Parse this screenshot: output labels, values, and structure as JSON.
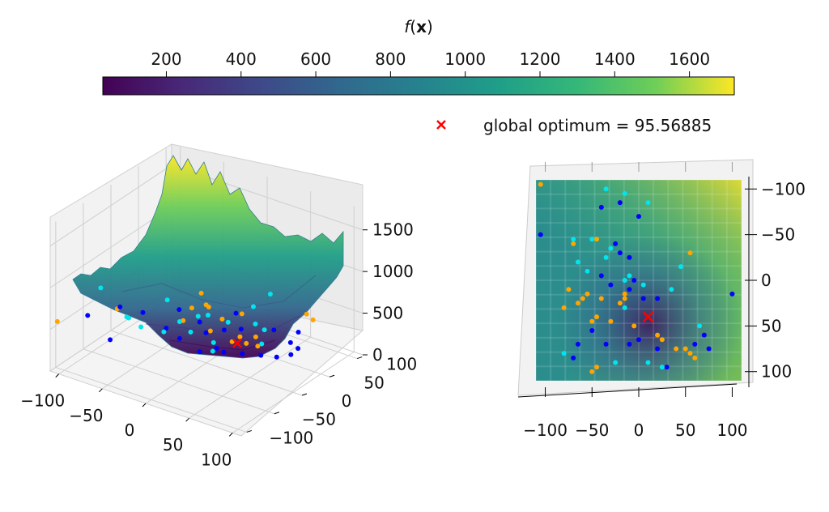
{
  "colorbar": {
    "title_prefix": "f(",
    "title_var": "x",
    "title_suffix": ")",
    "ticks": [
      200,
      400,
      600,
      800,
      1000,
      1200,
      1400,
      1600
    ],
    "range": [
      30,
      1720
    ],
    "colormap": "viridis"
  },
  "legend": {
    "label": "global optimum = 95.56885",
    "marker_color": "#ff0000",
    "marker": "x"
  },
  "chart_data": [
    {
      "type": "surface3d",
      "title": "",
      "x_ticks": [
        -100,
        -50,
        0,
        50,
        100
      ],
      "y_ticks": [
        -100,
        -50,
        0,
        50,
        100
      ],
      "z_ticks": [
        0,
        500,
        1000,
        1500
      ],
      "xlim": [
        -110,
        110
      ],
      "ylim": [
        -110,
        110
      ],
      "zlim": [
        0,
        1750
      ],
      "grid": true,
      "optimum": {
        "x": 10,
        "y": 40,
        "z": 95.56885,
        "color": "#ff0000"
      },
      "series": [
        {
          "color": "#ffa500",
          "points": [
            [
              -105,
              -105,
              590
            ],
            [
              60,
              -95,
              1330
            ],
            [
              -90,
              -20,
              420
            ],
            [
              -30,
              5,
              380
            ],
            [
              -5,
              15,
              300
            ],
            [
              20,
              15,
              260
            ],
            [
              30,
              25,
              230
            ],
            [
              40,
              30,
              210
            ],
            [
              25,
              50,
              180
            ],
            [
              10,
              45,
              150
            ],
            [
              -20,
              60,
              190
            ],
            [
              -45,
              75,
              180
            ],
            [
              -60,
              85,
              250
            ],
            [
              75,
              75,
              450
            ],
            [
              55,
              95,
              360
            ],
            [
              -55,
              60,
              200
            ],
            [
              -10,
              80,
              200
            ]
          ]
        },
        {
          "color": "#0000ff",
          "points": [
            [
              -105,
              -50,
              420
            ],
            [
              -60,
              -80,
              420
            ],
            [
              -90,
              -15,
              420
            ],
            [
              -70,
              -5,
              380
            ],
            [
              -40,
              -10,
              320
            ],
            [
              -15,
              -25,
              350
            ],
            [
              -10,
              15,
              260
            ],
            [
              5,
              -20,
              240
            ],
            [
              15,
              -5,
              250
            ],
            [
              20,
              0,
              200
            ],
            [
              35,
              10,
              190
            ],
            [
              50,
              20,
              180
            ],
            [
              65,
              25,
              190
            ],
            [
              75,
              35,
              210
            ],
            [
              100,
              -5,
              620
            ],
            [
              -30,
              35,
              230
            ],
            [
              -5,
              40,
              200
            ],
            [
              5,
              55,
              180
            ],
            [
              -60,
              45,
              230
            ],
            [
              30,
              75,
              170
            ],
            [
              55,
              80,
              210
            ],
            [
              80,
              40,
              280
            ],
            [
              -20,
              85,
              150
            ]
          ]
        },
        {
          "color": "#00e5ee",
          "points": [
            [
              -55,
              -105,
              1170
            ],
            [
              -15,
              -95,
              800
            ],
            [
              20,
              -80,
              920
            ],
            [
              40,
              -60,
              980
            ],
            [
              -60,
              -50,
              560
            ],
            [
              -30,
              -30,
              400
            ],
            [
              -15,
              -5,
              340
            ],
            [
              20,
              -20,
              300
            ],
            [
              5,
              5,
              240
            ],
            [
              -35,
              40,
              260
            ],
            [
              -10,
              55,
              210
            ],
            [
              0,
              85,
              300
            ],
            [
              50,
              10,
              600
            ],
            [
              70,
              -10,
              520
            ],
            [
              -80,
              55,
              230
            ],
            [
              10,
              100,
              420
            ],
            [
              35,
              50,
              300
            ],
            [
              -45,
              -70,
              690
            ]
          ]
        }
      ]
    },
    {
      "type": "heatmap",
      "title": "",
      "x_ticks": [
        -100,
        -50,
        0,
        50,
        100
      ],
      "y_ticks": [
        -100,
        -50,
        0,
        50,
        100
      ],
      "xlim": [
        -110,
        110
      ],
      "ylim": [
        110,
        -110
      ],
      "grid": true,
      "optimum": {
        "x": 10,
        "y": 40,
        "color": "#ff0000"
      },
      "series": [
        {
          "color": "#ffa500",
          "points": [
            [
              -105,
              -105
            ],
            [
              55,
              -30
            ],
            [
              -70,
              -40
            ],
            [
              -45,
              -45
            ],
            [
              -75,
              10
            ],
            [
              -55,
              15
            ],
            [
              -60,
              20
            ],
            [
              -65,
              25
            ],
            [
              -80,
              30
            ],
            [
              -40,
              20
            ],
            [
              -45,
              40
            ],
            [
              -50,
              45
            ],
            [
              -30,
              45
            ],
            [
              -15,
              15
            ],
            [
              -20,
              25
            ],
            [
              -5,
              50
            ],
            [
              20,
              60
            ],
            [
              25,
              65
            ],
            [
              40,
              75
            ],
            [
              50,
              75
            ],
            [
              55,
              80
            ],
            [
              60,
              85
            ],
            [
              -45,
              95
            ],
            [
              -50,
              100
            ],
            [
              -15,
              20
            ]
          ]
        },
        {
          "color": "#0000ff",
          "points": [
            [
              -105,
              -50
            ],
            [
              -40,
              -80
            ],
            [
              -20,
              -85
            ],
            [
              0,
              -70
            ],
            [
              -25,
              -40
            ],
            [
              -20,
              -30
            ],
            [
              -10,
              -25
            ],
            [
              -55,
              -10
            ],
            [
              -40,
              -5
            ],
            [
              -30,
              5
            ],
            [
              -5,
              0
            ],
            [
              -10,
              10
            ],
            [
              5,
              20
            ],
            [
              20,
              20
            ],
            [
              -50,
              55
            ],
            [
              -35,
              70
            ],
            [
              -10,
              70
            ],
            [
              0,
              65
            ],
            [
              20,
              75
            ],
            [
              30,
              95
            ],
            [
              60,
              70
            ],
            [
              70,
              60
            ],
            [
              75,
              75
            ],
            [
              100,
              15
            ],
            [
              -70,
              85
            ],
            [
              -65,
              70
            ]
          ]
        },
        {
          "color": "#00e5ee",
          "points": [
            [
              -15,
              -95
            ],
            [
              -35,
              -100
            ],
            [
              10,
              -85
            ],
            [
              -70,
              -45
            ],
            [
              -35,
              -25
            ],
            [
              -30,
              -35
            ],
            [
              -50,
              -45
            ],
            [
              -10,
              -5
            ],
            [
              -15,
              0
            ],
            [
              -15,
              30
            ],
            [
              5,
              5
            ],
            [
              35,
              10
            ],
            [
              45,
              -15
            ],
            [
              65,
              50
            ],
            [
              -80,
              80
            ],
            [
              -25,
              90
            ],
            [
              10,
              90
            ],
            [
              25,
              95
            ],
            [
              -55,
              -10
            ],
            [
              -65,
              -20
            ]
          ]
        }
      ]
    }
  ]
}
